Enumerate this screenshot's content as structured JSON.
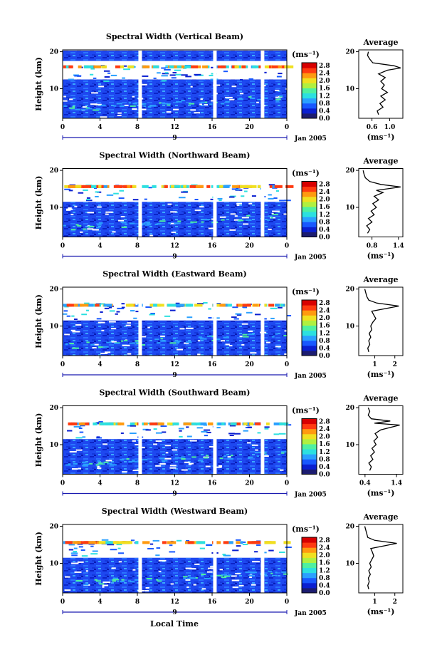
{
  "chart_data": [
    {
      "type": "heatmap",
      "title": "Spectral Width (Vertical Beam)",
      "ylabel": "Height (km)",
      "x_ticks": [
        "0",
        "4",
        "8",
        "12",
        "16",
        "20",
        "0"
      ],
      "y_ticks": [
        "20",
        "10"
      ],
      "date_label": "9",
      "month_label": "Jan 2005",
      "xlim": [
        0,
        24
      ],
      "ylim": [
        2,
        20.5
      ],
      "colorbar": {
        "unit": "(ms⁻¹)",
        "ticks": [
          "2.8",
          "2.4",
          "2.0",
          "1.6",
          "1.2",
          "0.8",
          "0.4",
          "0.0"
        ]
      },
      "data_gaps_hours": [
        8.3,
        16.3,
        21.4
      ],
      "average": {
        "title": "Average",
        "xlabel": "(ms⁻¹)",
        "x_ticks": [
          "0.6",
          "1.0"
        ],
        "y_ticks": [
          "20",
          "10"
        ],
        "xlim": [
          0.3,
          1.3
        ],
        "profile": [
          [
            0.75,
            3
          ],
          [
            0.72,
            4
          ],
          [
            0.85,
            5
          ],
          [
            0.78,
            6
          ],
          [
            0.9,
            7
          ],
          [
            0.8,
            8
          ],
          [
            0.95,
            9
          ],
          [
            0.82,
            10
          ],
          [
            0.88,
            11
          ],
          [
            0.8,
            12
          ],
          [
            0.9,
            13
          ],
          [
            0.75,
            14
          ],
          [
            0.95,
            15
          ],
          [
            1.25,
            15.6
          ],
          [
            1.1,
            16.2
          ],
          [
            0.62,
            17
          ],
          [
            0.55,
            18
          ],
          [
            0.5,
            19
          ],
          [
            0.52,
            20
          ]
        ]
      }
    },
    {
      "type": "heatmap",
      "title": "Spectral Width (Northward Beam)",
      "ylabel": "Height (km)",
      "x_ticks": [
        "0",
        "4",
        "8",
        "12",
        "16",
        "20",
        "0"
      ],
      "y_ticks": [
        "20",
        "10"
      ],
      "date_label": "9",
      "month_label": "Jan 2005",
      "xlim": [
        0,
        24
      ],
      "ylim": [
        2,
        20.5
      ],
      "colorbar": {
        "unit": "(ms⁻¹)",
        "ticks": [
          "2.8",
          "2.4",
          "2.0",
          "1.6",
          "1.2",
          "0.8",
          "0.4",
          "0.0"
        ]
      },
      "data_gaps_hours": [
        8.3,
        16.3,
        21.4
      ],
      "average": {
        "title": "Average",
        "xlabel": "(ms⁻¹)",
        "x_ticks": [
          "0.8",
          "1.4"
        ],
        "y_ticks": [
          "20",
          "10"
        ],
        "xlim": [
          0.5,
          1.5
        ],
        "profile": [
          [
            0.7,
            3
          ],
          [
            0.75,
            4
          ],
          [
            0.68,
            5
          ],
          [
            0.8,
            6
          ],
          [
            0.72,
            7
          ],
          [
            0.85,
            8
          ],
          [
            0.78,
            9
          ],
          [
            0.9,
            10
          ],
          [
            0.82,
            11
          ],
          [
            0.95,
            12
          ],
          [
            0.85,
            13
          ],
          [
            1.05,
            14
          ],
          [
            0.9,
            14.6
          ],
          [
            1.45,
            15.5
          ],
          [
            1.0,
            16.2
          ],
          [
            0.75,
            17
          ],
          [
            0.65,
            18
          ],
          [
            0.62,
            19
          ],
          [
            0.6,
            20
          ]
        ]
      }
    },
    {
      "type": "heatmap",
      "title": "Spectral Width (Eastward Beam)",
      "ylabel": "Height (km)",
      "x_ticks": [
        "0",
        "4",
        "8",
        "12",
        "16",
        "20",
        "0"
      ],
      "y_ticks": [
        "20",
        "10"
      ],
      "date_label": "9",
      "month_label": "Jan 2005",
      "xlim": [
        0,
        24
      ],
      "ylim": [
        2,
        20.5
      ],
      "colorbar": {
        "unit": "(ms⁻¹)",
        "ticks": [
          "2.8",
          "2.4",
          "2.0",
          "1.6",
          "1.2",
          "0.8",
          "0.4",
          "0.0"
        ]
      },
      "data_gaps_hours": [
        8.3,
        16.3,
        21.4
      ],
      "average": {
        "title": "Average",
        "xlabel": "(ms⁻¹)",
        "x_ticks": [
          "1",
          "2"
        ],
        "y_ticks": [
          "20",
          "10"
        ],
        "xlim": [
          0.2,
          2.4
        ],
        "profile": [
          [
            0.7,
            3
          ],
          [
            0.65,
            4
          ],
          [
            0.75,
            5
          ],
          [
            0.7,
            6
          ],
          [
            0.8,
            7
          ],
          [
            0.72,
            8
          ],
          [
            0.85,
            9
          ],
          [
            0.8,
            10
          ],
          [
            0.9,
            11
          ],
          [
            1.05,
            12
          ],
          [
            0.95,
            13
          ],
          [
            0.85,
            14
          ],
          [
            2.2,
            15.4
          ],
          [
            1.1,
            16.2
          ],
          [
            0.7,
            17
          ],
          [
            0.6,
            18
          ],
          [
            0.55,
            19
          ],
          [
            0.5,
            20
          ]
        ]
      }
    },
    {
      "type": "heatmap",
      "title": "Spectral Width (Southward Beam)",
      "ylabel": "Height (km)",
      "x_ticks": [
        "0",
        "4",
        "8",
        "12",
        "16",
        "20",
        "0"
      ],
      "y_ticks": [
        "20",
        "10"
      ],
      "date_label": "9",
      "month_label": "Jan 2005",
      "xlim": [
        0,
        24
      ],
      "ylim": [
        2,
        20.5
      ],
      "colorbar": {
        "unit": "(ms⁻¹)",
        "ticks": [
          "2.8",
          "2.4",
          "2.0",
          "1.6",
          "1.2",
          "0.8",
          "0.4",
          "0.0"
        ]
      },
      "data_gaps_hours": [
        8.3,
        16.3,
        21.4
      ],
      "average": {
        "title": "Average",
        "xlabel": "(ms⁻¹)",
        "x_ticks": [
          "0.4",
          "1.4"
        ],
        "y_ticks": [
          "20",
          "10"
        ],
        "xlim": [
          0.2,
          1.6
        ],
        "profile": [
          [
            0.55,
            3
          ],
          [
            0.6,
            4
          ],
          [
            0.52,
            5
          ],
          [
            0.65,
            6
          ],
          [
            0.58,
            7
          ],
          [
            0.7,
            8
          ],
          [
            0.62,
            9
          ],
          [
            0.75,
            10
          ],
          [
            0.68,
            11
          ],
          [
            0.8,
            12
          ],
          [
            0.72,
            13
          ],
          [
            0.9,
            14
          ],
          [
            1.5,
            15.3
          ],
          [
            0.7,
            15.8
          ],
          [
            1.2,
            16.4
          ],
          [
            0.6,
            17
          ],
          [
            0.5,
            18
          ],
          [
            0.55,
            19
          ],
          [
            0.5,
            20
          ]
        ]
      }
    },
    {
      "type": "heatmap",
      "title": "Spectral Width (Westward Beam)",
      "ylabel": "Height (km)",
      "x_ticks": [
        "0",
        "4",
        "8",
        "12",
        "16",
        "20",
        "0"
      ],
      "y_ticks": [
        "20",
        "10"
      ],
      "date_label": "9",
      "month_label": "Jan 2005",
      "xlim": [
        0,
        24
      ],
      "ylim": [
        2,
        20.5
      ],
      "colorbar": {
        "unit": "(ms⁻¹)",
        "ticks": [
          "2.8",
          "2.4",
          "2.0",
          "1.6",
          "1.2",
          "0.8",
          "0.4",
          "0.0"
        ]
      },
      "data_gaps_hours": [
        8.3,
        16.3,
        21.4
      ],
      "average": {
        "title": "Average",
        "xlabel": "(ms⁻¹)",
        "x_ticks": [
          "1",
          "2"
        ],
        "y_ticks": [
          "20",
          "10"
        ],
        "xlim": [
          0.2,
          2.4
        ],
        "profile": [
          [
            0.7,
            3
          ],
          [
            0.65,
            4
          ],
          [
            0.72,
            5
          ],
          [
            0.68,
            6
          ],
          [
            0.78,
            7
          ],
          [
            0.7,
            8
          ],
          [
            0.82,
            9
          ],
          [
            0.75,
            10
          ],
          [
            0.85,
            11
          ],
          [
            0.95,
            12
          ],
          [
            0.88,
            13
          ],
          [
            0.8,
            14
          ],
          [
            2.1,
            15.4
          ],
          [
            1.0,
            16.2
          ],
          [
            0.65,
            17
          ],
          [
            0.6,
            18
          ],
          [
            0.55,
            19
          ],
          [
            0.5,
            20
          ]
        ]
      }
    }
  ],
  "footer": {
    "xlabel": "Local Time"
  },
  "colors": {
    "colormap": [
      "#1c1c70",
      "#0a1fd0",
      "#1858ff",
      "#2aa0ff",
      "#2ce0e0",
      "#4ff0a0",
      "#b0f040",
      "#f0e020",
      "#ff9a10",
      "#ff3a10",
      "#d80000"
    ]
  }
}
